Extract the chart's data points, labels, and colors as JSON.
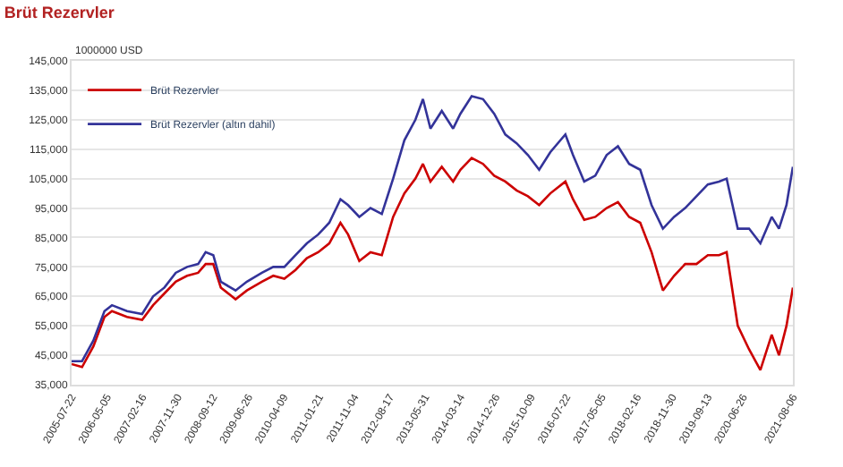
{
  "chart_data": {
    "type": "line",
    "title": "Brüt Rezervler",
    "ylabel": "1000000 USD",
    "x": [
      "2005-07-22",
      "2005-10-15",
      "2006-01-15",
      "2006-04-15",
      "2006-06-15",
      "2006-10-15",
      "2007-02-15",
      "2007-05-15",
      "2007-08-15",
      "2007-11-15",
      "2008-02-15",
      "2008-05-15",
      "2008-07-15",
      "2008-09-15",
      "2008-11-15",
      "2009-03-15",
      "2009-06-15",
      "2009-10-15",
      "2010-01-15",
      "2010-04-15",
      "2010-07-15",
      "2010-10-15",
      "2011-01-15",
      "2011-04-15",
      "2011-07-15",
      "2011-09-15",
      "2011-12-15",
      "2012-03-15",
      "2012-06-15",
      "2012-09-15",
      "2012-12-15",
      "2013-03-15",
      "2013-05-15",
      "2013-07-15",
      "2013-10-15",
      "2014-01-15",
      "2014-03-15",
      "2014-06-15",
      "2014-09-15",
      "2014-12-15",
      "2015-03-15",
      "2015-06-15",
      "2015-09-15",
      "2015-12-15",
      "2016-03-15",
      "2016-07-15",
      "2016-09-15",
      "2016-12-15",
      "2017-03-15",
      "2017-06-15",
      "2017-09-15",
      "2017-12-15",
      "2018-03-15",
      "2018-06-15",
      "2018-09-15",
      "2018-12-15",
      "2019-03-15",
      "2019-06-15",
      "2019-09-15",
      "2019-12-15",
      "2020-02-15",
      "2020-05-15",
      "2020-08-15",
      "2020-11-15",
      "2021-02-15",
      "2021-04-15",
      "2021-06-15",
      "2021-08-06"
    ],
    "series": [
      {
        "name": "Brüt Rezervler",
        "color": "#cc0000",
        "values": [
          42000,
          41000,
          48000,
          58000,
          60000,
          58000,
          57000,
          62000,
          66000,
          70000,
          72000,
          73000,
          76000,
          76000,
          68000,
          64000,
          67000,
          70000,
          72000,
          71000,
          74000,
          78000,
          80000,
          83000,
          90000,
          86000,
          77000,
          80000,
          79000,
          92000,
          100000,
          105000,
          110000,
          104000,
          109000,
          104000,
          108000,
          112000,
          110000,
          106000,
          104000,
          101000,
          99000,
          96000,
          100000,
          104000,
          98000,
          91000,
          92000,
          95000,
          97000,
          92000,
          90000,
          80000,
          67000,
          72000,
          76000,
          76000,
          79000,
          79000,
          80000,
          55000,
          47000,
          40000,
          52000,
          45000,
          55000,
          68000
        ]
      },
      {
        "name": "Brüt Rezervler (altın dahil)",
        "color": "#333399",
        "values": [
          43000,
          43000,
          50000,
          60000,
          62000,
          60000,
          59000,
          65000,
          68000,
          73000,
          75000,
          76000,
          80000,
          79000,
          70000,
          67000,
          70000,
          73000,
          75000,
          75000,
          79000,
          83000,
          86000,
          90000,
          98000,
          96000,
          92000,
          95000,
          93000,
          105000,
          118000,
          125000,
          132000,
          122000,
          128000,
          122000,
          127000,
          133000,
          132000,
          127000,
          120000,
          117000,
          113000,
          108000,
          114000,
          120000,
          113000,
          104000,
          106000,
          113000,
          116000,
          110000,
          108000,
          96000,
          88000,
          92000,
          95000,
          99000,
          103000,
          104000,
          105000,
          88000,
          88000,
          83000,
          92000,
          88000,
          96000,
          109000
        ]
      }
    ],
    "xlim": [
      "2005-07-22",
      "2021-08-06"
    ],
    "xticks": [
      "2005-07-22",
      "2006-05-05",
      "2007-02-16",
      "2007-11-30",
      "2008-09-12",
      "2009-06-26",
      "2010-04-09",
      "2011-01-21",
      "2011-11-04",
      "2012-08-17",
      "2013-05-31",
      "2014-03-14",
      "2014-12-26",
      "2015-10-09",
      "2016-07-22",
      "2017-05-05",
      "2018-02-16",
      "2018-11-30",
      "2019-09-13",
      "2020-06-26",
      "2021-08-06"
    ],
    "ylim": [
      35000,
      145000
    ],
    "yticks": [
      {
        "value": 35000,
        "label": "35,000"
      },
      {
        "value": 45000,
        "label": "45,000"
      },
      {
        "value": 55000,
        "label": "55,000"
      },
      {
        "value": 65000,
        "label": "65,000"
      },
      {
        "value": 75000,
        "label": "75,000"
      },
      {
        "value": 85000,
        "label": "85,000"
      },
      {
        "value": 95000,
        "label": "95,000"
      },
      {
        "value": 105000,
        "label": "105,000"
      },
      {
        "value": 115000,
        "label": "115,000"
      },
      {
        "value": 125000,
        "label": "125,000"
      },
      {
        "value": 135000,
        "label": "135,000"
      },
      {
        "value": 145000,
        "label": "145,000"
      }
    ],
    "grid": "y",
    "legend": "top left",
    "marker": "none",
    "line_style": "solid"
  }
}
